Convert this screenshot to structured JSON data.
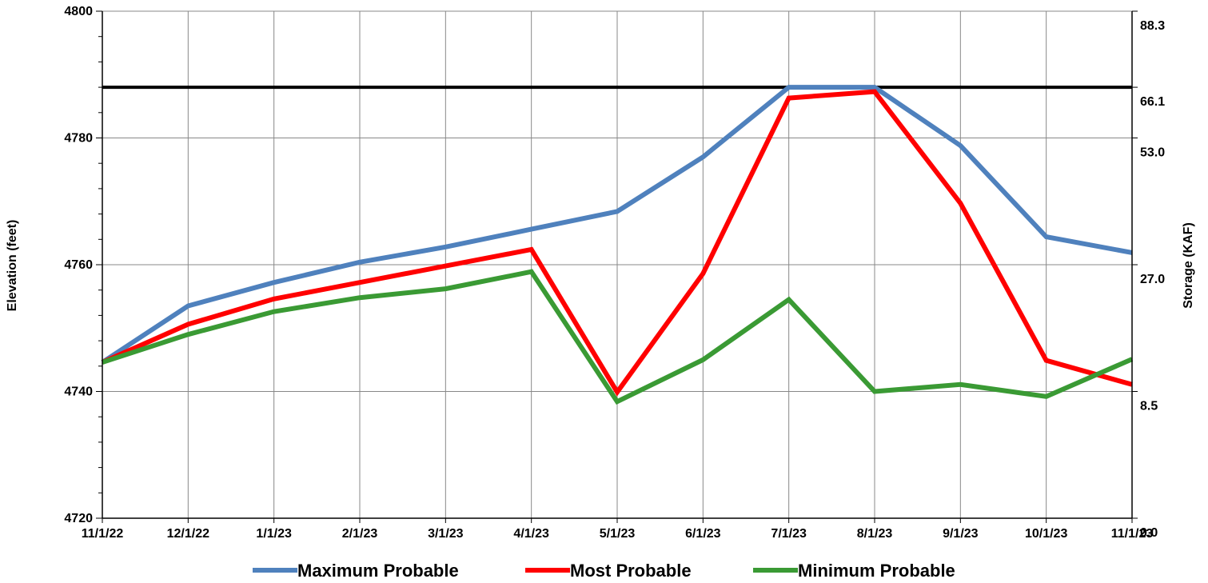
{
  "chart_data": {
    "type": "line",
    "categories": [
      "11/1/22",
      "12/1/22",
      "1/1/23",
      "2/1/23",
      "3/1/23",
      "4/1/23",
      "5/1/23",
      "6/1/23",
      "7/1/23",
      "8/1/23",
      "9/1/23",
      "10/1/23",
      "11/1/23"
    ],
    "ylabel": "Elevation (feet)",
    "y2label": "Storage (KAF)",
    "ylim": [
      4720,
      4800
    ],
    "yticks": [
      4720,
      4740,
      4760,
      4780,
      4800
    ],
    "yticks_labels": [
      "4720",
      "4740",
      "4760",
      "4780",
      "4800"
    ],
    "y2ticks": [
      {
        "elev": 4720,
        "label": "0.0"
      },
      {
        "elev": 4740,
        "label": "8.5"
      },
      {
        "elev": 4760,
        "label": "27.0"
      },
      {
        "elev": 4780,
        "label": "53.0"
      },
      {
        "elev": 4788,
        "label": "66.1"
      },
      {
        "elev": 4800,
        "label": "88.3"
      }
    ],
    "reference_line": 4788,
    "grid": true,
    "legend_position": "bottom",
    "series": [
      {
        "name": "Maximum Probable",
        "color": "#4f81bd",
        "values": [
          4744.6,
          4753.5,
          4757.2,
          4760.4,
          4762.8,
          4765.6,
          4768.4,
          4777.0,
          4788.0,
          4788.0,
          4778.8,
          4764.4,
          4761.9
        ]
      },
      {
        "name": "Most Probable",
        "color": "#ff0000",
        "values": [
          4744.6,
          4750.6,
          4754.6,
          4757.2,
          4759.8,
          4762.4,
          4739.9,
          4758.6,
          4786.3,
          4787.3,
          4769.7,
          4744.9,
          4741.1
        ]
      },
      {
        "name": "Minimum Probable",
        "color": "#3a9a34",
        "values": [
          4744.6,
          4749.0,
          4752.6,
          4754.8,
          4756.2,
          4758.9,
          4738.4,
          4745.0,
          4754.5,
          4740.0,
          4741.1,
          4739.2,
          4745.1
        ]
      }
    ]
  }
}
